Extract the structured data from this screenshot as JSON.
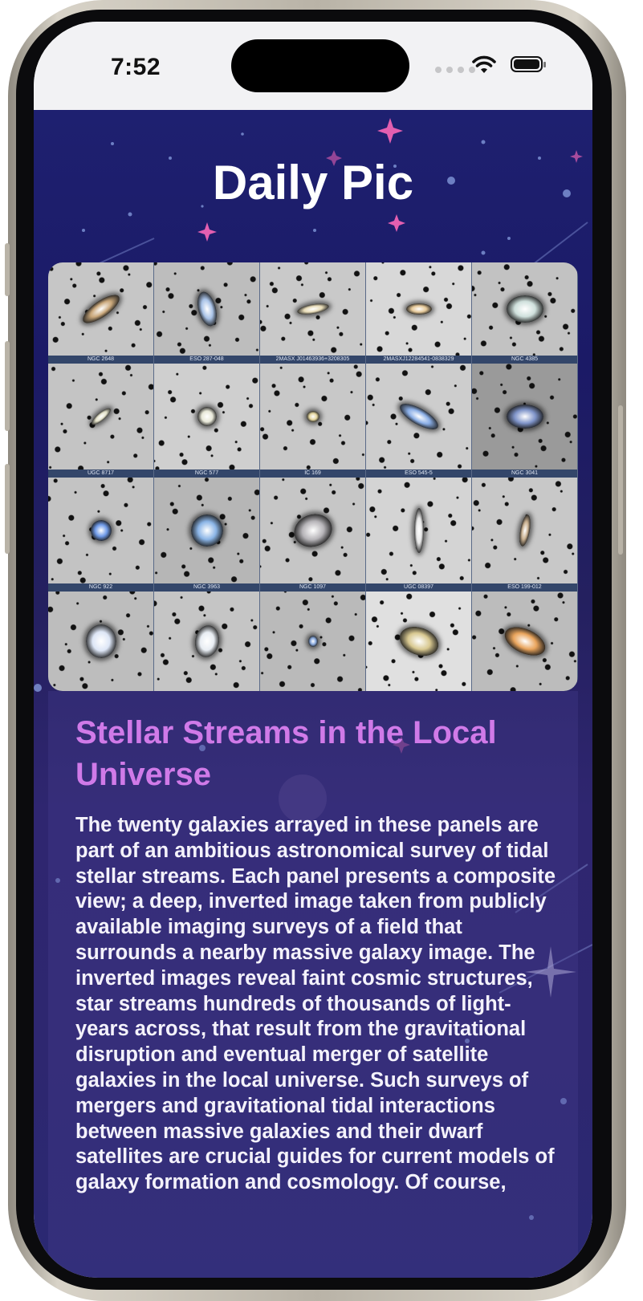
{
  "status_bar": {
    "time": "7:52"
  },
  "app": {
    "title": "Daily Pic"
  },
  "gallery": {
    "panels": [
      {
        "caption": "NGC 2648"
      },
      {
        "caption": "ESO 287-048"
      },
      {
        "caption": "2MASX J01463936+3208305"
      },
      {
        "caption": "2MASXJ12284541-0838329"
      },
      {
        "caption": "NGC 4385"
      },
      {
        "caption": "UGC 8717"
      },
      {
        "caption": "NGC 577"
      },
      {
        "caption": "IC 169"
      },
      {
        "caption": "ESO 545-5"
      },
      {
        "caption": "NGC 3041"
      },
      {
        "caption": "NGC 922"
      },
      {
        "caption": "NGC 3963"
      },
      {
        "caption": "NGC 1097"
      },
      {
        "caption": "UGC 08397"
      },
      {
        "caption": "ESO 199-012"
      },
      {
        "caption": ""
      },
      {
        "caption": ""
      },
      {
        "caption": ""
      },
      {
        "caption": ""
      },
      {
        "caption": ""
      }
    ]
  },
  "article": {
    "title": "Stellar Streams in the Local Universe",
    "body": "The twenty galaxies arrayed in these panels are part of an ambitious astronomical survey of tidal stellar streams. Each panel presents a composite view; a deep, inverted image taken from publicly available imaging surveys of a field that surrounds a nearby massive galaxy image. The inverted images reveal faint cosmic structures, star streams hundreds of thousands of light-years across, that result from the gravitational disruption and eventual merger of satellite galaxies in the local universe. Such surveys of mergers and gravitational tidal interactions between massive galaxies and their dwarf satellites are crucial guides for current models of galaxy formation and cosmology. Of course,"
  },
  "colors": {
    "background_top": "#1e2070",
    "title_text": "#ffffff",
    "headline": "#d07ae8",
    "body_text": "#f4f2fb"
  }
}
